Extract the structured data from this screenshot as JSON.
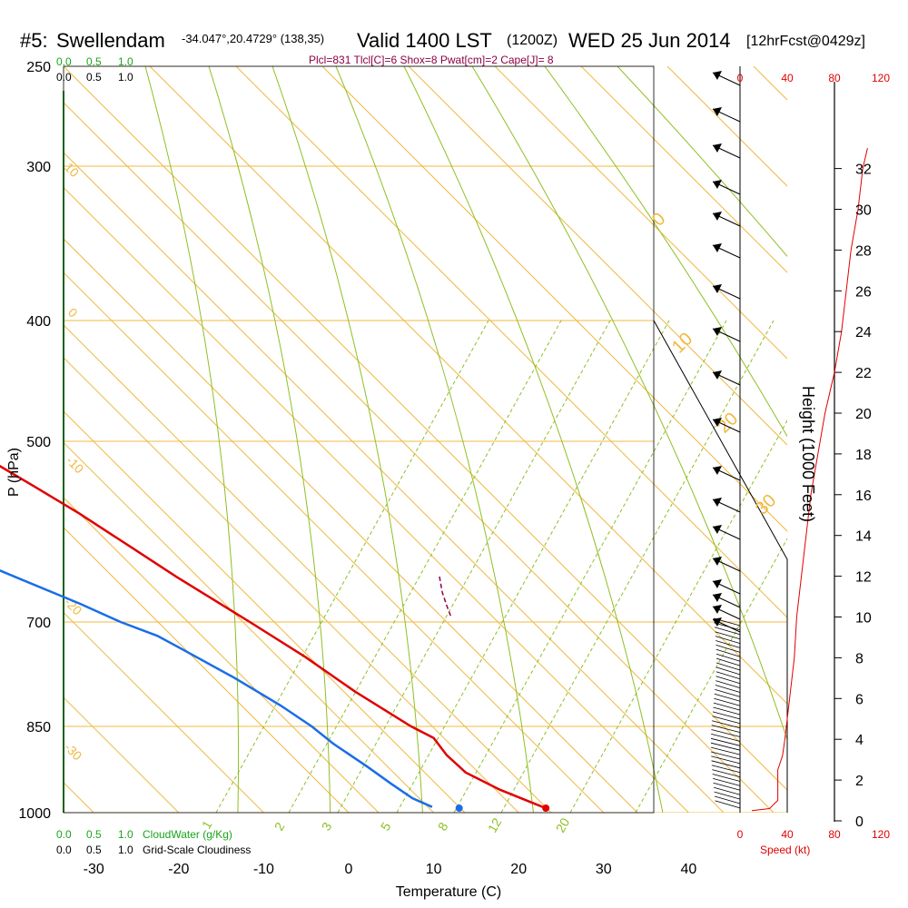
{
  "header": {
    "station_num": "#5:",
    "station_name": "Swellendam",
    "coords": "-34.047°,20.4729° (138,35)",
    "valid": "Valid 1400 LST",
    "zulu": "(1200Z)",
    "date": "WED 25 Jun 2014",
    "fcst": "[12hrFcst@0429z]"
  },
  "indices": "Plcl=831 Tlcl[C]=6 Shox=8 Pwat[cm]=2 Cape[J]= 8",
  "cloud_scale": {
    "top_green": [
      "0.0",
      "0.5",
      "1.0"
    ],
    "top_black": [
      "0.0",
      "0.5",
      "1.0"
    ],
    "bottom_green": [
      "0.0",
      "0.5",
      "1.0"
    ],
    "bottom_black": [
      "0.0",
      "0.5",
      "1.0"
    ],
    "cloudwater_label": "CloudWater (g/Kg)",
    "cloudiness_label": "Grid-Scale Cloudiness"
  },
  "colors": {
    "isotherm": "#f0b840",
    "dry_adiabat": "#8fbf25",
    "temperature": "#e00000",
    "dewpoint": "#1a6de8",
    "parcel": "#8b0046"
  },
  "chart_data": {
    "type": "skew-t sounding",
    "xlabel": "Temperature (C)",
    "ylabel": "P (hPa)",
    "xticks": [
      "-30",
      "-20",
      "-10",
      "0",
      "10",
      "20",
      "30",
      "40"
    ],
    "pressure_ticks": [
      "250",
      "300",
      "400",
      "500",
      "700",
      "850",
      "1000"
    ],
    "height_label": "Height (1000 Feet)",
    "height_ticks": [
      "0",
      "2",
      "4",
      "6",
      "8",
      "10",
      "12",
      "14",
      "16",
      "18",
      "20",
      "22",
      "24",
      "26",
      "28",
      "30",
      "32"
    ],
    "speed_label": "Speed (kt)",
    "speed_ticks": [
      "0",
      "40",
      "80",
      "120"
    ],
    "isotherm_labels": [
      "10",
      "0",
      "-10",
      "-20",
      "-30",
      "0",
      "10",
      "20",
      "30"
    ],
    "mixing_ratio_labels": [
      "1",
      "2",
      "3",
      "5",
      "8",
      "12",
      "20"
    ],
    "temperature_profile": [
      {
        "p": 990,
        "t": 23.5
      },
      {
        "p": 960,
        "t": 20.5
      },
      {
        "p": 930,
        "t": 18.5
      },
      {
        "p": 900,
        "t": 18.3
      },
      {
        "p": 870,
        "t": 18.8
      },
      {
        "p": 850,
        "t": 17.5
      },
      {
        "p": 800,
        "t": 15.0
      },
      {
        "p": 750,
        "t": 13.2
      },
      {
        "p": 700,
        "t": 10.8
      },
      {
        "p": 670,
        "t": 8.8
      },
      {
        "p": 650,
        "t": 7.5
      },
      {
        "p": 620,
        "t": 5.8
      },
      {
        "p": 580,
        "t": 3.5
      },
      {
        "p": 550,
        "t": 1.4
      },
      {
        "p": 520,
        "t": -0.8
      },
      {
        "p": 500,
        "t": -2.3
      },
      {
        "p": 460,
        "t": -5.7
      },
      {
        "p": 430,
        "t": -8.8
      },
      {
        "p": 400,
        "t": -12.7
      },
      {
        "p": 380,
        "t": -15.7
      },
      {
        "p": 350,
        "t": -20.5
      },
      {
        "p": 320,
        "t": -25.8
      },
      {
        "p": 300,
        "t": -29.8
      },
      {
        "p": 270,
        "t": -35.7
      },
      {
        "p": 260,
        "t": -38.0
      }
    ],
    "dewpoint_profile": [
      {
        "p": 990,
        "t": 10.5
      },
      {
        "p": 975,
        "t": 9.2
      },
      {
        "p": 950,
        "t": 8.4
      },
      {
        "p": 920,
        "t": 7.6
      },
      {
        "p": 880,
        "t": 6.3
      },
      {
        "p": 850,
        "t": 5.8
      },
      {
        "p": 820,
        "t": 4.6
      },
      {
        "p": 780,
        "t": 2.4
      },
      {
        "p": 740,
        "t": -0.3
      },
      {
        "p": 720,
        "t": -1.7
      },
      {
        "p": 700,
        "t": -4.4
      },
      {
        "p": 680,
        "t": -7.0
      },
      {
        "p": 650,
        "t": -11.5
      },
      {
        "p": 620,
        "t": -16.0
      },
      {
        "p": 590,
        "t": -20.2
      },
      {
        "p": 560,
        "t": -23.8
      },
      {
        "p": 530,
        "t": -26.3
      },
      {
        "p": 500,
        "t": -28.7
      },
      {
        "p": 470,
        "t": -31.3
      },
      {
        "p": 440,
        "t": -34.3
      },
      {
        "p": 400,
        "t": -38.8
      },
      {
        "p": 370,
        "t": -42.5
      },
      {
        "p": 350,
        "t": -44.3
      },
      {
        "p": 330,
        "t": -45.2
      },
      {
        "p": 300,
        "t": -46.0
      },
      {
        "p": 280,
        "t": -46.2
      },
      {
        "p": 260,
        "t": -47.3
      }
    ],
    "surface_temperature": {
      "p": 1000,
      "t": 23.2
    },
    "surface_dewpoint": {
      "p": 1000,
      "t": 13.0
    },
    "wind_speed_profile": [
      {
        "h": 0.5,
        "s": 10
      },
      {
        "h": 0.6,
        "s": 25
      },
      {
        "h": 1.0,
        "s": 32
      },
      {
        "h": 2.5,
        "s": 32
      },
      {
        "h": 3.2,
        "s": 36
      },
      {
        "h": 4.0,
        "s": 38
      },
      {
        "h": 6.0,
        "s": 42
      },
      {
        "h": 8.0,
        "s": 46
      },
      {
        "h": 10.0,
        "s": 48
      },
      {
        "h": 12.0,
        "s": 52
      },
      {
        "h": 14.0,
        "s": 56
      },
      {
        "h": 16.0,
        "s": 60
      },
      {
        "h": 18.0,
        "s": 66
      },
      {
        "h": 20.0,
        "s": 72
      },
      {
        "h": 22.0,
        "s": 80
      },
      {
        "h": 24.0,
        "s": 86
      },
      {
        "h": 26.0,
        "s": 90
      },
      {
        "h": 28.0,
        "s": 94
      },
      {
        "h": 30.0,
        "s": 100
      },
      {
        "h": 32.0,
        "s": 104
      },
      {
        "h": 33.0,
        "s": 108
      }
    ]
  }
}
